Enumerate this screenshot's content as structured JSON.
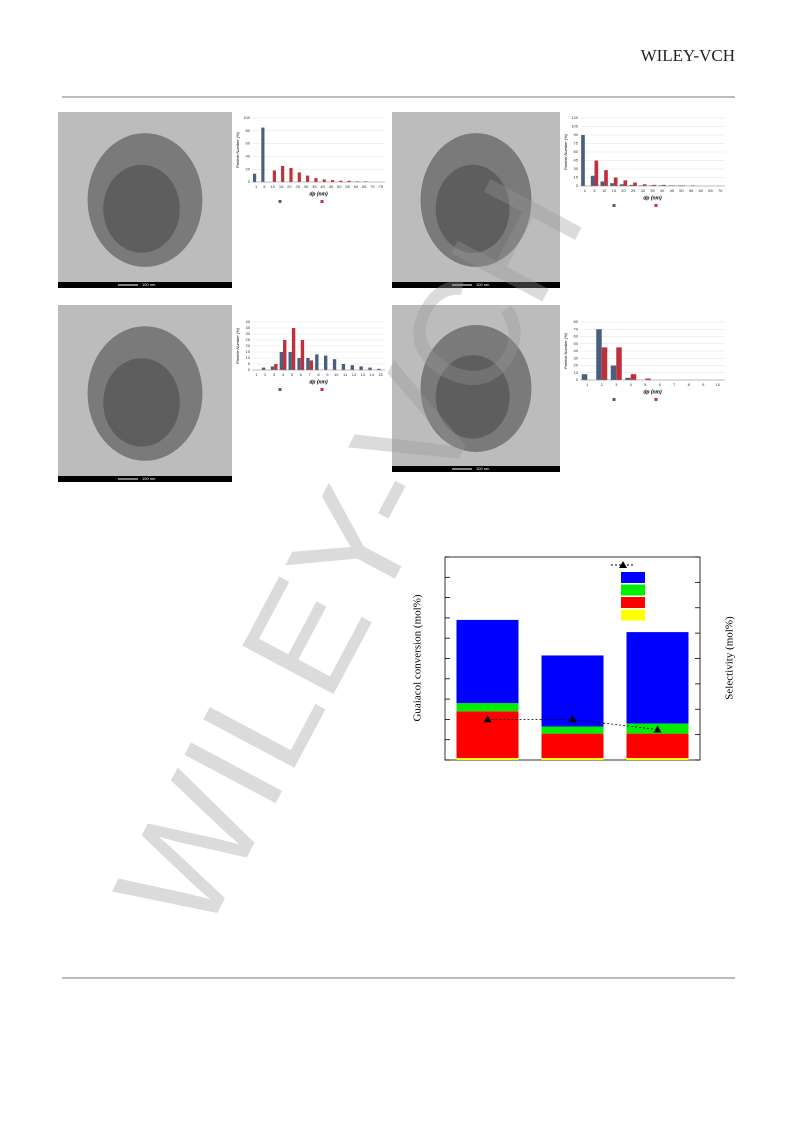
{
  "header": {
    "publisher": "WILEY-VCH"
  },
  "watermark": "WILEY-VCH",
  "images": [
    {
      "scale_bar": "100 nm"
    },
    {
      "scale_bar": "100 nm"
    },
    {
      "scale_bar": "100 nm"
    },
    {
      "scale_bar": "100 nm"
    }
  ],
  "chart_data": [
    {
      "type": "histogram",
      "x_label": "dp (nm)",
      "y_label": "Particle Number (%)",
      "categories": [
        "1",
        "5",
        "10",
        "15",
        "20",
        "25",
        "30",
        "35",
        "40",
        "45",
        "50",
        "55",
        "60",
        "65",
        "70",
        "75"
      ],
      "series": [
        {
          "color": "#4a5f80",
          "values": [
            13,
            85,
            0,
            0,
            0,
            0,
            0,
            0,
            0,
            0,
            0,
            0,
            0,
            0,
            0,
            0
          ]
        },
        {
          "color": "#c0303a",
          "values": [
            0,
            0,
            18,
            25,
            22,
            15,
            10,
            6,
            4,
            3,
            2,
            2,
            1,
            1,
            0,
            0
          ]
        }
      ],
      "ylim": [
        0,
        100
      ],
      "yticks": [
        0,
        20,
        40,
        60,
        80,
        100
      ]
    },
    {
      "type": "histogram",
      "x_label": "dp (nm)",
      "y_label": "Particle Number (%)",
      "categories": [
        "2",
        "5",
        "10",
        "15",
        "20",
        "25",
        "30",
        "35",
        "40",
        "45",
        "50",
        "55",
        "60",
        "65",
        "70"
      ],
      "series": [
        {
          "color": "#4a5f80",
          "values": [
            90,
            18,
            8,
            5,
            3,
            2,
            1,
            1,
            1,
            1,
            1,
            0,
            0,
            0,
            0
          ]
        },
        {
          "color": "#c0303a",
          "values": [
            0,
            45,
            28,
            15,
            10,
            6,
            3,
            2,
            2,
            1,
            1,
            1,
            0,
            0,
            0
          ]
        }
      ],
      "ylim": [
        0,
        120
      ],
      "yticks": [
        0,
        15,
        30,
        45,
        60,
        75,
        90,
        105,
        120
      ]
    },
    {
      "type": "histogram",
      "x_label": "dp (nm)",
      "y_label": "Particle Number (%)",
      "categories": [
        "1",
        "2",
        "3",
        "4",
        "5",
        "6",
        "7",
        "8",
        "9",
        "10",
        "11",
        "12",
        "13",
        "14",
        "15"
      ],
      "series": [
        {
          "color": "#4a5f80",
          "values": [
            0,
            2,
            3,
            15,
            15,
            10,
            10,
            13,
            12,
            9,
            5,
            4,
            3,
            2,
            1
          ]
        },
        {
          "color": "#c0303a",
          "values": [
            0,
            0,
            5,
            25,
            35,
            25,
            8,
            0,
            0,
            0,
            0,
            0,
            0,
            0,
            0
          ]
        }
      ],
      "ylim": [
        0,
        40
      ],
      "yticks": [
        0,
        5,
        10,
        15,
        20,
        25,
        30,
        35,
        40
      ]
    },
    {
      "type": "histogram",
      "x_label": "dp (nm)",
      "y_label": "Particle Number (%)",
      "categories": [
        "1",
        "2",
        "3",
        "4",
        "5",
        "6",
        "7",
        "8",
        "9",
        "10"
      ],
      "series": [
        {
          "color": "#4a5f80",
          "values": [
            8,
            70,
            20,
            3,
            0,
            0,
            0,
            0,
            0,
            0
          ]
        },
        {
          "color": "#c0303a",
          "values": [
            0,
            45,
            45,
            8,
            2,
            0,
            0,
            0,
            0,
            0
          ]
        }
      ],
      "ylim": [
        0,
        80
      ],
      "yticks": [
        0,
        10,
        20,
        30,
        40,
        50,
        60,
        70,
        80
      ]
    },
    {
      "type": "stacked-bar",
      "y_label": "Guaiacol conversion (mol%)",
      "y2_label": "Selectivity (mol%)",
      "categories": [
        null,
        null,
        null
      ],
      "series": [
        {
          "color": "#ffff00",
          "values": [
            1,
            1,
            1
          ]
        },
        {
          "color": "#ff0000",
          "values": [
            23,
            12,
            12
          ]
        },
        {
          "color": "#00ee00",
          "values": [
            4,
            3.5,
            5
          ]
        },
        {
          "color": "#0000ff",
          "values": [
            41,
            35,
            45
          ]
        },
        {
          "color": "#000000",
          "axis": "y2",
          "values": [
            16,
            16,
            12
          ]
        }
      ],
      "ylim": [
        0,
        100
      ],
      "yticks": [
        0,
        10,
        20,
        30,
        40,
        50,
        60,
        70,
        80,
        90,
        100
      ],
      "y2lim": [
        0,
        80
      ],
      "y2ticks": [
        0,
        10,
        20,
        30,
        40,
        50,
        60,
        70,
        80
      ]
    }
  ]
}
